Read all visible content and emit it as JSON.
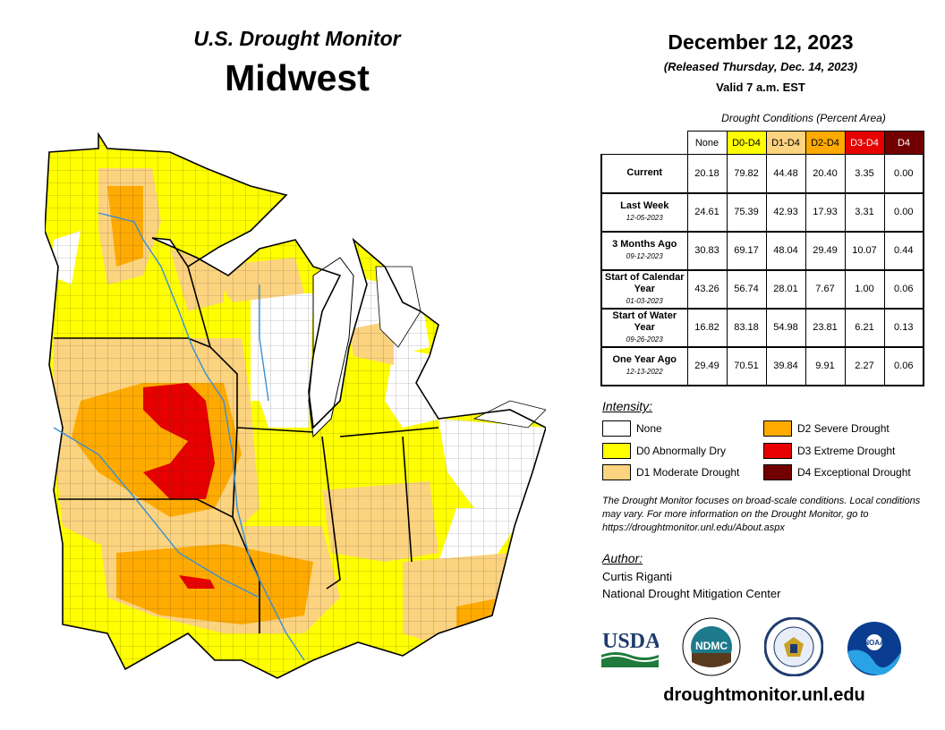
{
  "header": {
    "supertitle": "U.S. Drought Monitor",
    "region": "Midwest",
    "date": "December 12, 2023",
    "released": "(Released Thursday, Dec. 14, 2023)",
    "valid": "Valid 7 a.m. EST"
  },
  "conditions_table": {
    "caption": "Drought Conditions (Percent Area)",
    "columns": [
      "None",
      "D0-D4",
      "D1-D4",
      "D2-D4",
      "D3-D4",
      "D4"
    ],
    "column_colors": [
      "#ffffff",
      "#ffff00",
      "#fcd37f",
      "#ffaa00",
      "#e60000",
      "#730000"
    ],
    "rows": [
      {
        "label": "Current",
        "date": "",
        "values": [
          "20.18",
          "79.82",
          "44.48",
          "20.40",
          "3.35",
          "0.00"
        ]
      },
      {
        "label": "Last Week",
        "date": "12-05-2023",
        "values": [
          "24.61",
          "75.39",
          "42.93",
          "17.93",
          "3.31",
          "0.00"
        ]
      },
      {
        "label": "3 Months Ago",
        "date": "09-12-2023",
        "values": [
          "30.83",
          "69.17",
          "48.04",
          "29.49",
          "10.07",
          "0.44"
        ]
      },
      {
        "label": "Start of Calendar Year",
        "date": "01-03-2023",
        "values": [
          "43.26",
          "56.74",
          "28.01",
          "7.67",
          "1.00",
          "0.06"
        ]
      },
      {
        "label": "Start of Water Year",
        "date": "09-26-2023",
        "values": [
          "16.82",
          "83.18",
          "54.98",
          "23.81",
          "6.21",
          "0.13"
        ]
      },
      {
        "label": "One Year Ago",
        "date": "12-13-2022",
        "values": [
          "29.49",
          "70.51",
          "39.84",
          "9.91",
          "2.27",
          "0.06"
        ]
      }
    ]
  },
  "legend": {
    "title": "Intensity:",
    "items": [
      {
        "label": "None",
        "color": "#ffffff"
      },
      {
        "label": "D0 Abnormally Dry",
        "color": "#ffff00"
      },
      {
        "label": "D1 Moderate Drought",
        "color": "#fcd37f"
      },
      {
        "label": "D2 Severe Drought",
        "color": "#ffaa00"
      },
      {
        "label": "D3 Extreme Drought",
        "color": "#e60000"
      },
      {
        "label": "D4 Exceptional Drought",
        "color": "#730000"
      }
    ]
  },
  "note": "The Drought Monitor focuses on broad-scale conditions. Local conditions may vary. For more information on the Drought Monitor, go to https://droughtmonitor.unl.edu/About.aspx",
  "author": {
    "heading": "Author:",
    "name": "Curtis Riganti",
    "org": "National Drought Mitigation Center"
  },
  "logos": [
    {
      "name": "usda-logo",
      "text": "USDA"
    },
    {
      "name": "ndmc-logo",
      "text": "NDMC"
    },
    {
      "name": "doc-seal-logo",
      "text": ""
    },
    {
      "name": "noaa-logo",
      "text": "NOAA"
    }
  ],
  "footer_url": "droughtmonitor.unl.edu"
}
